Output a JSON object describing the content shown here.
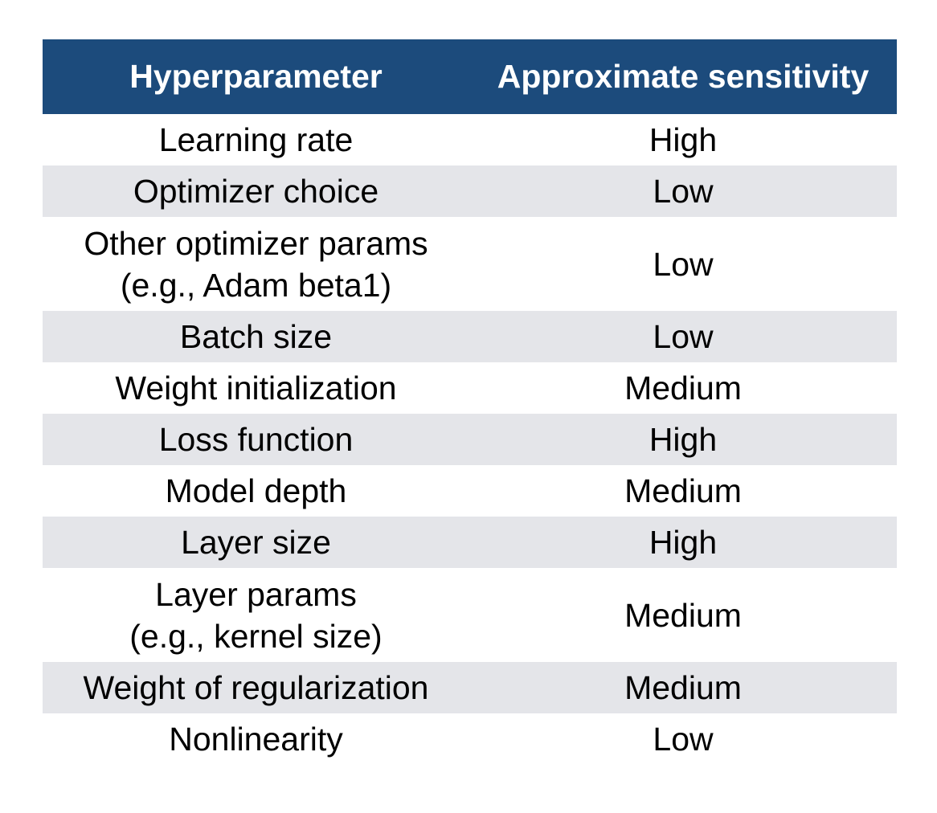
{
  "table": {
    "headers": [
      "Hyperparameter",
      "Approximate sensitivity"
    ],
    "rows": [
      {
        "param": [
          "Learning rate"
        ],
        "sensitivity": "High"
      },
      {
        "param": [
          "Optimizer choice"
        ],
        "sensitivity": "Low"
      },
      {
        "param": [
          "Other optimizer params",
          "(e.g., Adam beta1)"
        ],
        "sensitivity": "Low"
      },
      {
        "param": [
          "Batch size"
        ],
        "sensitivity": "Low"
      },
      {
        "param": [
          "Weight initialization"
        ],
        "sensitivity": "Medium"
      },
      {
        "param": [
          "Loss function"
        ],
        "sensitivity": "High"
      },
      {
        "param": [
          "Model depth"
        ],
        "sensitivity": "Medium"
      },
      {
        "param": [
          "Layer size"
        ],
        "sensitivity": "High"
      },
      {
        "param": [
          "Layer params",
          "(e.g., kernel size)"
        ],
        "sensitivity": "Medium"
      },
      {
        "param": [
          "Weight of regularization"
        ],
        "sensitivity": "Medium"
      },
      {
        "param": [
          "Nonlinearity"
        ],
        "sensitivity": "Low"
      }
    ]
  },
  "colors": {
    "header_bg": "#1c4b7c",
    "header_text": "#ffffff",
    "shaded_row": "#e4e5e9"
  }
}
